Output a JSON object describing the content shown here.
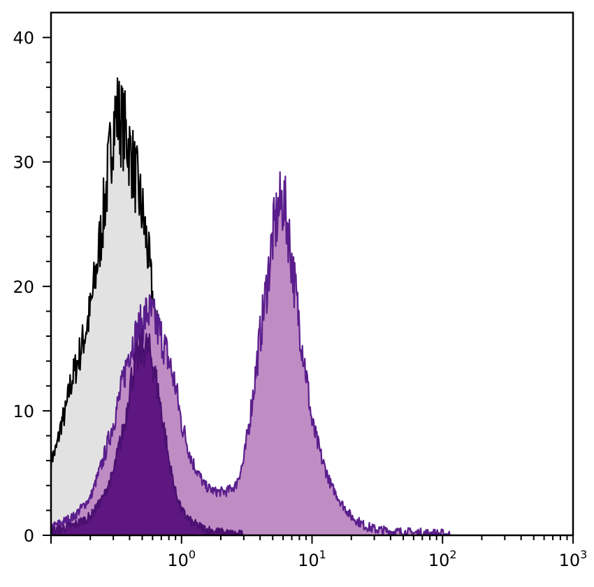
{
  "chart_data": {
    "type": "area",
    "title": "",
    "xlabel": "",
    "ylabel": "",
    "x_scale": "log",
    "xlim": [
      0.1,
      1000
    ],
    "ylim": [
      0,
      42
    ],
    "grid": false,
    "legend": "none",
    "x_ticks": [
      {
        "value": 1,
        "base": "10",
        "exp": "0"
      },
      {
        "value": 10,
        "base": "10",
        "exp": "1"
      },
      {
        "value": 100,
        "base": "10",
        "exp": "2"
      },
      {
        "value": 1000,
        "base": "10",
        "exp": "3"
      }
    ],
    "y_ticks": [
      {
        "value": 0,
        "label": "0"
      },
      {
        "value": 10,
        "label": "10"
      },
      {
        "value": 20,
        "label": "20"
      },
      {
        "value": 30,
        "label": "30"
      },
      {
        "value": 40,
        "label": "40"
      }
    ],
    "series": [
      {
        "fill": "#e2e2e2",
        "stroke": "#000000",
        "points": [
          [
            0.1,
            6
          ],
          [
            0.11,
            7
          ],
          [
            0.12,
            9
          ],
          [
            0.13,
            10
          ],
          [
            0.14,
            12
          ],
          [
            0.16,
            14
          ],
          [
            0.18,
            16
          ],
          [
            0.2,
            18
          ],
          [
            0.22,
            21
          ],
          [
            0.24,
            24
          ],
          [
            0.26,
            27
          ],
          [
            0.28,
            30
          ],
          [
            0.3,
            33
          ],
          [
            0.32,
            34
          ],
          [
            0.35,
            33
          ],
          [
            0.38,
            32
          ],
          [
            0.42,
            30
          ],
          [
            0.46,
            28
          ],
          [
            0.5,
            26
          ],
          [
            0.55,
            23
          ],
          [
            0.6,
            19
          ],
          [
            0.65,
            15
          ],
          [
            0.7,
            11
          ],
          [
            0.78,
            7
          ],
          [
            0.88,
            4
          ],
          [
            1.0,
            2
          ],
          [
            1.2,
            0.8
          ],
          [
            1.5,
            0.3
          ],
          [
            2.0,
            0
          ]
        ]
      },
      {
        "fill": "#c08cc4",
        "stroke": "#5a1e8c",
        "points": [
          [
            0.1,
            0.6
          ],
          [
            0.15,
            1.5
          ],
          [
            0.2,
            3
          ],
          [
            0.25,
            6
          ],
          [
            0.3,
            9
          ],
          [
            0.35,
            12
          ],
          [
            0.4,
            15
          ],
          [
            0.45,
            16
          ],
          [
            0.5,
            17
          ],
          [
            0.55,
            18
          ],
          [
            0.6,
            17.5
          ],
          [
            0.7,
            16
          ],
          [
            0.8,
            14
          ],
          [
            0.9,
            12
          ],
          [
            1.0,
            9
          ],
          [
            1.2,
            6
          ],
          [
            1.5,
            4
          ],
          [
            1.8,
            3.5
          ],
          [
            2.2,
            3.5
          ],
          [
            2.6,
            4
          ],
          [
            3.0,
            6
          ],
          [
            3.3,
            9
          ],
          [
            3.6,
            12
          ],
          [
            4.0,
            16
          ],
          [
            4.5,
            20
          ],
          [
            5.0,
            24
          ],
          [
            5.5,
            26
          ],
          [
            6.0,
            27
          ],
          [
            6.5,
            25
          ],
          [
            7.0,
            22
          ],
          [
            8.0,
            17
          ],
          [
            9.0,
            13
          ],
          [
            10,
            9
          ],
          [
            12,
            6
          ],
          [
            14,
            4
          ],
          [
            17,
            2.5
          ],
          [
            20,
            1.5
          ],
          [
            25,
            0.8
          ],
          [
            30,
            0.5
          ],
          [
            40,
            0.3
          ],
          [
            60,
            0.2
          ],
          [
            100,
            0.1
          ],
          [
            120,
            0
          ]
        ]
      },
      {
        "fill": "#5e1780",
        "stroke": "#4a1070",
        "points": [
          [
            0.1,
            0.3
          ],
          [
            0.15,
            0.8
          ],
          [
            0.2,
            1.5
          ],
          [
            0.25,
            3
          ],
          [
            0.3,
            5
          ],
          [
            0.33,
            7
          ],
          [
            0.37,
            9
          ],
          [
            0.4,
            12
          ],
          [
            0.45,
            14
          ],
          [
            0.5,
            15
          ],
          [
            0.55,
            15
          ],
          [
            0.6,
            14
          ],
          [
            0.65,
            12
          ],
          [
            0.7,
            10
          ],
          [
            0.75,
            8
          ],
          [
            0.8,
            6
          ],
          [
            0.9,
            3.5
          ],
          [
            1.0,
            2
          ],
          [
            1.2,
            1
          ],
          [
            1.5,
            0.5
          ],
          [
            2.0,
            0.2
          ],
          [
            3.0,
            0
          ]
        ]
      }
    ]
  }
}
